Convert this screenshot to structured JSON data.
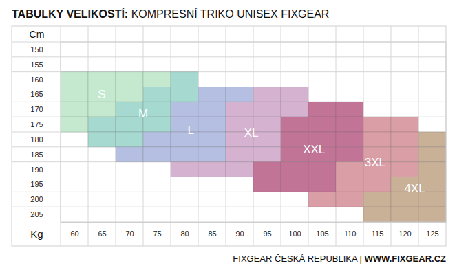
{
  "chart_data": {
    "type": "grid",
    "title": "TABULKY VELIKOSTÍ: KOMPRESNÍ TRIKO UNISEX FIXGEAR",
    "x_label": "Kg",
    "y_label": "Cm",
    "footer": "FIXGEAR ČESKÁ REPUBLIKA | WWW.FIXGEAR.CZ",
    "xlim": [
      57.5,
      127.5
    ],
    "ylim": [
      147.5,
      207.5
    ],
    "xticks": [
      60,
      65,
      70,
      75,
      80,
      85,
      90,
      95,
      100,
      105,
      110,
      115,
      120,
      125
    ],
    "yticks": [
      150,
      155,
      160,
      165,
      170,
      175,
      180,
      185,
      190,
      195,
      200,
      205
    ],
    "grid": true,
    "series": [
      {
        "name": "S",
        "color": "#c4e9cf",
        "cells": [
          [
            60,
            160
          ],
          [
            65,
            160
          ],
          [
            70,
            160
          ],
          [
            75,
            160
          ],
          [
            60,
            165
          ],
          [
            65,
            165
          ],
          [
            70,
            165
          ],
          [
            60,
            170
          ],
          [
            65,
            170
          ],
          [
            60,
            175
          ]
        ]
      },
      {
        "name": "M",
        "color": "#a6d9cf",
        "cells": [
          [
            80,
            160
          ],
          [
            75,
            165
          ],
          [
            80,
            165
          ],
          [
            70,
            170
          ],
          [
            75,
            170
          ],
          [
            65,
            175
          ],
          [
            70,
            175
          ],
          [
            75,
            175
          ],
          [
            65,
            180
          ],
          [
            70,
            180
          ]
        ]
      },
      {
        "name": "L",
        "color": "#b5bfe1",
        "cells": [
          [
            85,
            165
          ],
          [
            90,
            165
          ],
          [
            80,
            170
          ],
          [
            85,
            170
          ],
          [
            80,
            175
          ],
          [
            85,
            175
          ],
          [
            75,
            180
          ],
          [
            80,
            180
          ],
          [
            85,
            180
          ],
          [
            70,
            185
          ],
          [
            75,
            185
          ],
          [
            80,
            185
          ],
          [
            85,
            185
          ]
        ]
      },
      {
        "name": "XL",
        "color": "#d4b2d0",
        "cells": [
          [
            95,
            165
          ],
          [
            100,
            165
          ],
          [
            90,
            170
          ],
          [
            95,
            170
          ],
          [
            100,
            170
          ],
          [
            90,
            175
          ],
          [
            95,
            175
          ],
          [
            90,
            180
          ],
          [
            95,
            180
          ],
          [
            90,
            185
          ],
          [
            95,
            185
          ],
          [
            80,
            190
          ],
          [
            85,
            190
          ],
          [
            90,
            190
          ]
        ]
      },
      {
        "name": "XXL",
        "color": "#c27497",
        "cells": [
          [
            105,
            170
          ],
          [
            110,
            170
          ],
          [
            100,
            175
          ],
          [
            105,
            175
          ],
          [
            110,
            175
          ],
          [
            100,
            180
          ],
          [
            105,
            180
          ],
          [
            110,
            180
          ],
          [
            100,
            185
          ],
          [
            105,
            185
          ],
          [
            110,
            185
          ],
          [
            95,
            190
          ],
          [
            100,
            190
          ],
          [
            105,
            190
          ],
          [
            95,
            195
          ],
          [
            100,
            195
          ],
          [
            105,
            195
          ]
        ]
      },
      {
        "name": "3XL",
        "color": "#d99ea6",
        "cells": [
          [
            115,
            175
          ],
          [
            120,
            175
          ],
          [
            115,
            180
          ],
          [
            120,
            180
          ],
          [
            115,
            185
          ],
          [
            120,
            185
          ],
          [
            110,
            190
          ],
          [
            115,
            190
          ],
          [
            120,
            190
          ],
          [
            110,
            195
          ],
          [
            115,
            195
          ],
          [
            105,
            200
          ],
          [
            110,
            200
          ]
        ]
      },
      {
        "name": "4XL",
        "color": "#c9b198",
        "cells": [
          [
            125,
            180
          ],
          [
            125,
            185
          ],
          [
            125,
            190
          ],
          [
            120,
            195
          ],
          [
            125,
            195
          ],
          [
            115,
            200
          ],
          [
            120,
            200
          ],
          [
            125,
            200
          ],
          [
            115,
            205
          ],
          [
            120,
            205
          ],
          [
            125,
            205
          ]
        ]
      }
    ]
  }
}
